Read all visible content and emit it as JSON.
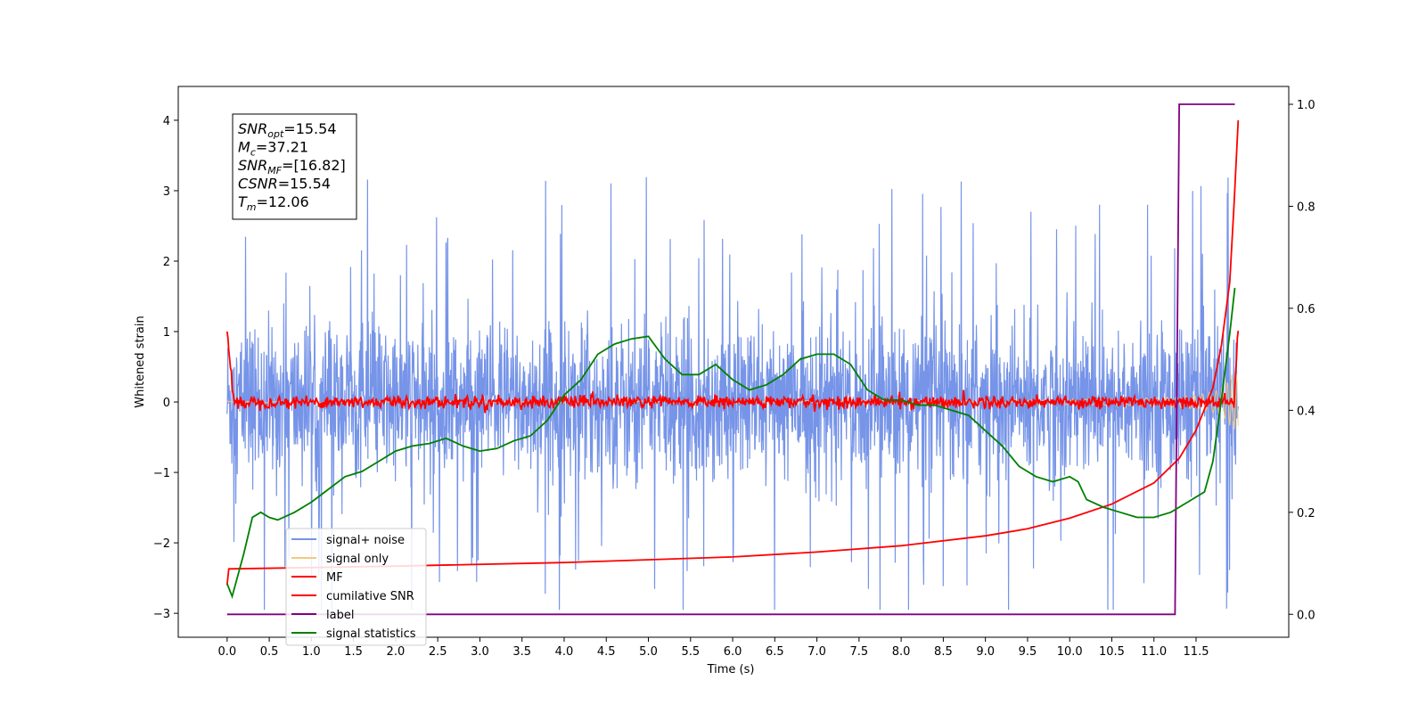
{
  "chart_data": {
    "type": "line",
    "xlabel": "Time (s)",
    "ylabel": "Whitened strain",
    "xlim": [
      -0.58,
      12.6
    ],
    "ylim": [
      -3.34,
      4.48
    ],
    "y2lim": [
      -0.045,
      1.035
    ],
    "x_ticks": [
      "0.0",
      "0.5",
      "1.0",
      "1.5",
      "2.0",
      "2.5",
      "3.0",
      "3.5",
      "4.0",
      "4.5",
      "5.0",
      "5.5",
      "6.0",
      "6.5",
      "7.0",
      "7.5",
      "8.0",
      "8.5",
      "9.0",
      "9.5",
      "10.0",
      "10.5",
      "11.0",
      "11.5"
    ],
    "y_ticks": [
      "−3",
      "−2",
      "−1",
      "0",
      "1",
      "2",
      "3",
      "4"
    ],
    "y2_ticks": [
      "0.0",
      "0.2",
      "0.4",
      "0.6",
      "0.8",
      "1.0"
    ],
    "annotation": [
      {
        "base": "SNR",
        "sub": "opt",
        "value": "=15.54"
      },
      {
        "base": "M",
        "sub": "c",
        "value": "=37.21"
      },
      {
        "base": "SNR",
        "sub": "MF",
        "value": "=[16.82]"
      },
      {
        "base": "CSNR",
        "sub": "",
        "value": "=15.54"
      },
      {
        "base": "T",
        "sub": "m",
        "value": "=12.06"
      }
    ],
    "legend_position": "lower-left",
    "series": [
      {
        "name": "signal+ noise",
        "color": "#7694e8",
        "style": "dense noise, amplitude about ±1.6 with spikes to about ±3.4, t 0–12.0 s"
      },
      {
        "name": "signal only",
        "color": "#f5c97a",
        "style": "chirp oscillation, amplitude growing toward 2.4 at t≈12.0 s"
      },
      {
        "name": "MF",
        "color": "#ff0000",
        "style": "near 0 with noise ±0.1, starts at 1.0, ends rising to 1.0"
      },
      {
        "name": "cumilative SNR",
        "color": "#ff0000",
        "x": [
          0.0,
          0.02,
          2.0,
          4.0,
          6.0,
          7.0,
          8.0,
          9.0,
          9.5,
          10.0,
          10.5,
          11.0,
          11.3,
          11.5,
          11.7,
          11.8,
          11.9,
          11.95,
          12.0
        ],
        "y": [
          -2.6,
          -2.37,
          -2.33,
          -2.28,
          -2.2,
          -2.13,
          -2.04,
          -1.9,
          -1.8,
          -1.65,
          -1.45,
          -1.15,
          -0.8,
          -0.4,
          0.2,
          0.8,
          1.7,
          2.8,
          4.0
        ]
      },
      {
        "name": "label",
        "color": "#800080",
        "axis": "right",
        "x": [
          0.0,
          11.25,
          11.3,
          11.96
        ],
        "y": [
          0.0,
          0.0,
          1.0,
          1.0
        ]
      },
      {
        "name": "signal statistics",
        "color": "#008000",
        "axis": "right",
        "x": [
          0.0,
          0.06,
          0.2,
          0.3,
          0.4,
          0.5,
          0.6,
          0.8,
          1.0,
          1.2,
          1.4,
          1.6,
          1.8,
          2.0,
          2.2,
          2.4,
          2.6,
          2.8,
          3.0,
          3.2,
          3.4,
          3.6,
          3.8,
          4.0,
          4.2,
          4.4,
          4.6,
          4.8,
          5.0,
          5.2,
          5.4,
          5.6,
          5.8,
          6.0,
          6.2,
          6.4,
          6.6,
          6.8,
          7.0,
          7.2,
          7.4,
          7.6,
          7.8,
          8.0,
          8.2,
          8.4,
          8.6,
          8.8,
          9.0,
          9.2,
          9.4,
          9.6,
          9.8,
          10.0,
          10.1,
          10.2,
          10.4,
          10.6,
          10.8,
          11.0,
          11.2,
          11.4,
          11.6,
          11.7,
          11.8,
          11.9,
          11.96
        ],
        "y": [
          0.06,
          0.035,
          0.12,
          0.19,
          0.2,
          0.19,
          0.185,
          0.2,
          0.22,
          0.245,
          0.27,
          0.28,
          0.3,
          0.32,
          0.33,
          0.335,
          0.345,
          0.33,
          0.32,
          0.325,
          0.34,
          0.35,
          0.38,
          0.43,
          0.46,
          0.51,
          0.53,
          0.54,
          0.545,
          0.5,
          0.47,
          0.47,
          0.49,
          0.46,
          0.44,
          0.45,
          0.47,
          0.5,
          0.51,
          0.51,
          0.49,
          0.44,
          0.42,
          0.42,
          0.41,
          0.41,
          0.4,
          0.39,
          0.36,
          0.33,
          0.29,
          0.27,
          0.26,
          0.27,
          0.26,
          0.225,
          0.21,
          0.2,
          0.19,
          0.19,
          0.2,
          0.22,
          0.24,
          0.3,
          0.42,
          0.55,
          0.64
        ]
      }
    ]
  }
}
